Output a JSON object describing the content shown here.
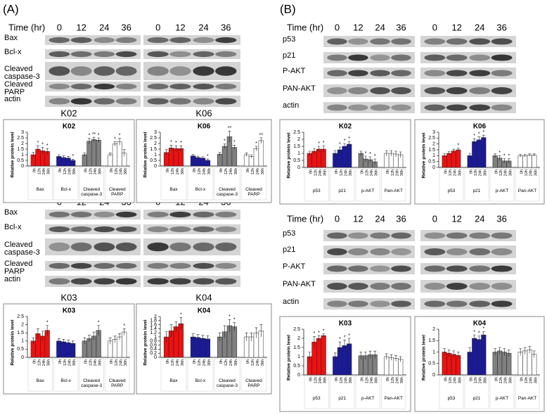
{
  "panels": [
    {
      "label": "(A)",
      "blocks": [
        {
          "time_label": "Time (hr)",
          "times": [
            0,
            12,
            24,
            36
          ],
          "rows": [
            "Bax",
            "Bcl-x",
            "Cleaved caspase-3",
            "Cleaved PARP",
            "actin"
          ]
        },
        {
          "times": [
            0,
            12,
            24,
            36
          ],
          "rows": [
            "Bax",
            "Bcl-x",
            "Cleaved caspase-3",
            "Cleaved PARP",
            "actin"
          ]
        }
      ]
    },
    {
      "label": "(B)",
      "blocks": [
        {
          "time_label": "Time (hr)",
          "times": [
            0,
            12,
            24,
            36
          ],
          "rows": [
            "p53",
            "p21",
            "P-AKT",
            "PAN-AKT",
            "actin"
          ]
        },
        {
          "time_label": "Time (hr)",
          "times": [
            0,
            12,
            24,
            36
          ],
          "rows": [
            "p53",
            "p21",
            "P-AKT",
            "PAN-AKT",
            "actin"
          ]
        }
      ]
    }
  ],
  "chart_data": [
    {
      "type": "bar",
      "caption": "K02",
      "title": "K02",
      "ylabel": "Relative protein level",
      "ylim": [
        0,
        3
      ],
      "yticks": [
        0,
        0.5,
        1,
        1.5,
        2,
        2.5,
        3
      ],
      "categories": [
        "0h",
        "12h",
        "24h",
        "36h"
      ],
      "series": [
        {
          "name": "Bax",
          "color": "#ee1111",
          "values": [
            1.0,
            1.5,
            1.35,
            1.3
          ],
          "errors": [
            0.2,
            0.3,
            0.3,
            0.25
          ],
          "annotations": [
            null,
            "*",
            "*",
            "*"
          ]
        },
        {
          "name": "Bcl-x",
          "color": "#1a1a9a",
          "values": [
            0.85,
            0.75,
            0.7,
            0.5
          ],
          "errors": [
            0.15,
            0.15,
            0.15,
            0.1
          ],
          "annotations": [
            null,
            null,
            null,
            "*"
          ]
        },
        {
          "name": "Cleaved caspase-3",
          "color": "#808080",
          "values": [
            1.0,
            2.2,
            2.35,
            2.3
          ],
          "errors": [
            0.15,
            0.25,
            0.2,
            0.2
          ],
          "annotations": [
            null,
            "*",
            "**",
            "*"
          ]
        },
        {
          "name": "Cleaved PARP",
          "color": "#ffffff",
          "values": [
            1.0,
            1.95,
            2.15,
            1.15
          ],
          "errors": [
            0.15,
            0.2,
            0.3,
            0.3
          ],
          "annotations": [
            null,
            "*",
            "*",
            null
          ]
        }
      ]
    },
    {
      "type": "bar",
      "caption": "K06",
      "title": "K06",
      "ylabel": "Relative protein level",
      "ylim": [
        0,
        3
      ],
      "yticks": [
        0,
        0.5,
        1,
        1.5,
        2,
        2.5,
        3
      ],
      "categories": [
        "0h",
        "12h",
        "24h",
        "36h"
      ],
      "series": [
        {
          "name": "Bax",
          "color": "#ee1111",
          "values": [
            1.2,
            1.6,
            1.55,
            1.55
          ],
          "errors": [
            0.25,
            0.25,
            0.25,
            0.25
          ],
          "annotations": [
            null,
            "*",
            "*",
            "*"
          ]
        },
        {
          "name": "Bcl-x",
          "color": "#1a1a9a",
          "values": [
            0.9,
            0.75,
            0.7,
            0.5
          ],
          "errors": [
            0.12,
            0.12,
            0.12,
            0.12
          ],
          "annotations": [
            null,
            null,
            null,
            "*"
          ]
        },
        {
          "name": "Cleaved caspase-3",
          "color": "#808080",
          "values": [
            1.05,
            1.75,
            2.6,
            1.65
          ],
          "errors": [
            0.15,
            0.2,
            0.5,
            0.2
          ],
          "annotations": [
            null,
            "*",
            "**",
            "*"
          ]
        },
        {
          "name": "Cleaved PARP",
          "color": "#ffffff",
          "values": [
            1.0,
            0.85,
            1.55,
            2.25
          ],
          "errors": [
            0.15,
            0.15,
            0.2,
            0.25
          ],
          "annotations": [
            null,
            null,
            "*",
            "**"
          ]
        }
      ]
    },
    {
      "type": "bar",
      "caption": "K03",
      "title": "K03",
      "ylabel": "Relative protein level",
      "ylim": [
        0,
        2.5
      ],
      "yticks": [
        0,
        0.5,
        1,
        1.5,
        2,
        2.5
      ],
      "categories": [
        "0h",
        "12h",
        "24h",
        "36h"
      ],
      "series": [
        {
          "name": "Bax",
          "color": "#ee1111",
          "values": [
            1.0,
            1.45,
            1.3,
            1.65
          ],
          "errors": [
            0.2,
            0.3,
            0.3,
            0.3
          ],
          "annotations": [
            null,
            null,
            null,
            "*"
          ]
        },
        {
          "name": "Bcl-x",
          "color": "#1a1a9a",
          "values": [
            1.0,
            0.95,
            0.9,
            0.85
          ],
          "errors": [
            0.15,
            0.15,
            0.15,
            0.15
          ],
          "annotations": [
            null,
            null,
            null,
            null
          ]
        },
        {
          "name": "Cleaved caspase-3",
          "color": "#808080",
          "values": [
            1.0,
            1.15,
            1.3,
            1.65
          ],
          "errors": [
            0.2,
            0.2,
            0.25,
            0.3
          ],
          "annotations": [
            null,
            null,
            null,
            "*"
          ]
        },
        {
          "name": "Cleaved PARP",
          "color": "#ffffff",
          "values": [
            1.0,
            1.1,
            1.25,
            1.55
          ],
          "errors": [
            0.2,
            0.2,
            0.2,
            0.2
          ],
          "annotations": [
            null,
            null,
            null,
            "*"
          ]
        }
      ]
    },
    {
      "type": "bar",
      "caption": "K04",
      "title": "K04",
      "ylabel": "Relative protein level",
      "ylim": [
        0,
        2
      ],
      "yticks": [
        0,
        0.2,
        0.4,
        0.6,
        0.8,
        1,
        1.2,
        1.4,
        1.6,
        1.8,
        2
      ],
      "categories": [
        "0h",
        "12h",
        "24h",
        "36h"
      ],
      "series": [
        {
          "name": "Bax",
          "color": "#ee1111",
          "values": [
            1.0,
            1.3,
            1.5,
            1.65
          ],
          "errors": [
            0.25,
            0.3,
            0.25,
            0.3
          ],
          "annotations": [
            null,
            null,
            null,
            "*"
          ]
        },
        {
          "name": "Bcl-x",
          "color": "#1a1a9a",
          "values": [
            1.0,
            0.97,
            0.93,
            0.9
          ],
          "errors": [
            0.15,
            0.15,
            0.15,
            0.15
          ],
          "annotations": [
            null,
            null,
            null,
            null
          ]
        },
        {
          "name": "Cleaved caspase-3",
          "color": "#808080",
          "values": [
            1.0,
            1.25,
            1.55,
            1.5
          ],
          "errors": [
            0.2,
            0.3,
            0.3,
            0.2
          ],
          "annotations": [
            null,
            null,
            "*",
            "*"
          ]
        },
        {
          "name": "Cleaved PARP",
          "color": "#ffffff",
          "values": [
            1.0,
            1.0,
            1.2,
            1.3
          ],
          "errors": [
            0.2,
            0.2,
            0.25,
            0.3
          ],
          "annotations": [
            null,
            null,
            null,
            null
          ]
        }
      ]
    },
    {
      "type": "bar",
      "title": "K02",
      "ylabel": "Relative protein level",
      "ylim": [
        0,
        2.5
      ],
      "yticks": [
        0,
        0.5,
        1,
        1.5,
        2,
        2.5
      ],
      "categories": [
        "0h",
        "12h",
        "24h",
        "36h"
      ],
      "series": [
        {
          "name": "p53",
          "color": "#ee1111",
          "values": [
            1.0,
            1.15,
            1.3,
            1.3
          ],
          "errors": [
            0.15,
            0.2,
            0.2,
            0.25
          ],
          "annotations": [
            null,
            null,
            "*",
            "*"
          ]
        },
        {
          "name": "p21",
          "color": "#1a1a9a",
          "values": [
            1.0,
            1.25,
            1.5,
            1.65
          ],
          "errors": [
            0.2,
            0.2,
            0.2,
            0.2
          ],
          "annotations": [
            null,
            "*",
            "*",
            "*"
          ]
        },
        {
          "name": "p-AKT",
          "color": "#808080",
          "values": [
            1.0,
            0.6,
            0.55,
            0.4
          ],
          "errors": [
            0.15,
            0.2,
            0.2,
            0.2
          ],
          "annotations": [
            null,
            "*",
            "*",
            "*"
          ]
        },
        {
          "name": "Pan-AKT",
          "color": "#ffffff",
          "values": [
            1.0,
            1.0,
            0.95,
            0.9
          ],
          "errors": [
            0.2,
            0.2,
            0.2,
            0.2
          ],
          "annotations": [
            null,
            null,
            null,
            null
          ]
        }
      ]
    },
    {
      "type": "bar",
      "title": "K06",
      "ylabel": "Relative protein level",
      "ylim": [
        0,
        3
      ],
      "yticks": [
        0,
        0.5,
        1,
        1.5,
        2,
        2.5,
        3
      ],
      "categories": [
        "0h",
        "12h",
        "24h",
        "36h"
      ],
      "series": [
        {
          "name": "p53",
          "color": "#ee1111",
          "values": [
            1.0,
            1.2,
            1.4,
            1.5
          ],
          "errors": [
            0.15,
            0.15,
            0.15,
            0.15
          ],
          "annotations": [
            null,
            null,
            null,
            "*"
          ]
        },
        {
          "name": "p21",
          "color": "#1a1a9a",
          "values": [
            1.0,
            2.2,
            2.35,
            2.55
          ],
          "errors": [
            0.2,
            0.25,
            0.25,
            0.2
          ],
          "annotations": [
            null,
            "*",
            "*",
            "*"
          ]
        },
        {
          "name": "p-AKT",
          "color": "#808080",
          "values": [
            1.0,
            0.8,
            0.55,
            0.55
          ],
          "errors": [
            0.15,
            0.2,
            0.2,
            0.2
          ],
          "annotations": [
            null,
            "*",
            "*",
            "*"
          ]
        },
        {
          "name": "Pan-AKT",
          "color": "#ffffff",
          "values": [
            1.0,
            1.0,
            1.05,
            1.05
          ],
          "errors": [
            0.1,
            0.1,
            0.1,
            0.1
          ],
          "annotations": [
            null,
            null,
            null,
            null
          ]
        }
      ]
    },
    {
      "type": "bar",
      "title": "K03",
      "ylabel": "Relative protein level",
      "ylim": [
        0,
        2.5
      ],
      "yticks": [
        0,
        0.5,
        1,
        1.5,
        2,
        2.5
      ],
      "categories": [
        "0h",
        "12h",
        "24h",
        "36h"
      ],
      "series": [
        {
          "name": "p53",
          "color": "#ee1111",
          "values": [
            1.0,
            1.8,
            2.0,
            2.15
          ],
          "errors": [
            0.25,
            0.3,
            0.15,
            0.1
          ],
          "annotations": [
            null,
            "*",
            "*",
            "*"
          ]
        },
        {
          "name": "p21",
          "color": "#1a1a9a",
          "values": [
            1.0,
            1.5,
            1.6,
            1.7
          ],
          "errors": [
            0.2,
            0.3,
            0.3,
            0.3
          ],
          "annotations": [
            null,
            "*",
            "*",
            "*"
          ]
        },
        {
          "name": "p-AKT",
          "color": "#808080",
          "values": [
            1.05,
            1.05,
            1.1,
            1.1
          ],
          "errors": [
            0.2,
            0.2,
            0.2,
            0.2
          ],
          "annotations": [
            null,
            null,
            null,
            null
          ]
        },
        {
          "name": "Pan-AKT",
          "color": "#ffffff",
          "values": [
            1.0,
            0.95,
            0.9,
            0.85
          ],
          "errors": [
            0.15,
            0.15,
            0.15,
            0.15
          ],
          "annotations": [
            null,
            null,
            null,
            null
          ]
        }
      ]
    },
    {
      "type": "bar",
      "title": "K04",
      "ylabel": "Relative protein level",
      "ylim": [
        0,
        2
      ],
      "yticks": [
        0,
        0.5,
        1,
        1.5,
        2
      ],
      "categories": [
        "0h",
        "12h",
        "24h",
        "36h"
      ],
      "series": [
        {
          "name": "p53",
          "color": "#ee1111",
          "values": [
            1.0,
            0.95,
            0.9,
            0.85
          ],
          "errors": [
            0.15,
            0.15,
            0.15,
            0.15
          ],
          "annotations": [
            null,
            null,
            null,
            null
          ]
        },
        {
          "name": "p21",
          "color": "#1a1a9a",
          "values": [
            1.0,
            1.6,
            1.55,
            1.75
          ],
          "errors": [
            0.2,
            0.15,
            0.15,
            0.15
          ],
          "annotations": [
            null,
            "*",
            "*",
            "*"
          ]
        },
        {
          "name": "p-AKT",
          "color": "#808080",
          "values": [
            1.0,
            1.05,
            1.0,
            0.95
          ],
          "errors": [
            0.15,
            0.15,
            0.15,
            0.15
          ],
          "annotations": [
            null,
            null,
            null,
            null
          ]
        },
        {
          "name": "Pan-AKT",
          "color": "#ffffff",
          "values": [
            1.0,
            1.05,
            1.1,
            0.9
          ],
          "errors": [
            0.15,
            0.15,
            0.15,
            0.15
          ],
          "annotations": [
            null,
            null,
            null,
            null
          ]
        }
      ]
    }
  ]
}
